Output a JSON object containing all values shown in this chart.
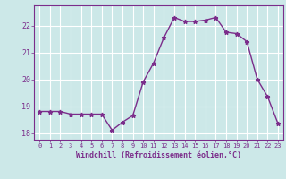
{
  "x": [
    0,
    1,
    2,
    3,
    4,
    5,
    6,
    7,
    8,
    9,
    10,
    11,
    12,
    13,
    14,
    15,
    16,
    17,
    18,
    19,
    20,
    21,
    22,
    23
  ],
  "y": [
    18.8,
    18.8,
    18.8,
    18.7,
    18.7,
    18.7,
    18.7,
    18.1,
    18.4,
    18.65,
    19.9,
    20.6,
    21.55,
    22.3,
    22.15,
    22.15,
    22.2,
    22.3,
    21.75,
    21.7,
    21.4,
    20.0,
    19.35,
    18.35
  ],
  "line_color": "#7b2d8b",
  "marker": "*",
  "marker_size": 3.5,
  "bg_color": "#cce8e8",
  "grid_color": "#ffffff",
  "xlabel": "Windchill (Refroidissement éolien,°C)",
  "xlabel_color": "#7b2d8b",
  "tick_color": "#7b2d8b",
  "spine_color": "#7b2d8b",
  "ylim": [
    17.75,
    22.75
  ],
  "yticks": [
    18,
    19,
    20,
    21,
    22
  ],
  "xlim": [
    -0.5,
    23.5
  ],
  "xticks": [
    0,
    1,
    2,
    3,
    4,
    5,
    6,
    7,
    8,
    9,
    10,
    11,
    12,
    13,
    14,
    15,
    16,
    17,
    18,
    19,
    20,
    21,
    22,
    23
  ]
}
